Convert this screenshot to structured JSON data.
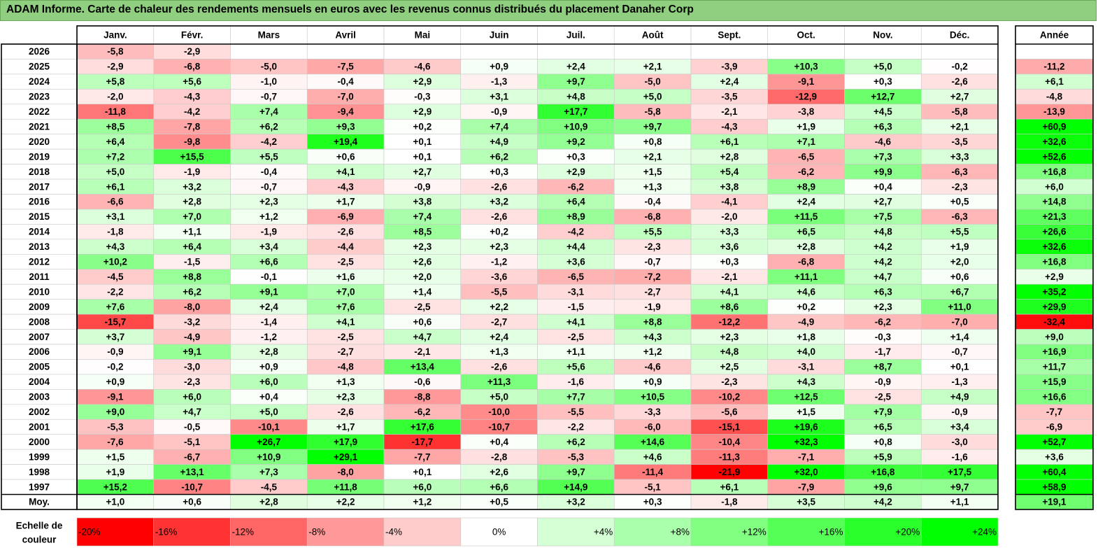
{
  "title": "ADAM Informe. Carte de chaleur des rendements mensuels en euros avec les revenus connus distribués du placement Danaher Corp",
  "chart_data": {
    "type": "heatmap",
    "title": "ADAM Informe. Carte de chaleur des rendements mensuels en euros avec les revenus connus distribués du placement Danaher Corp",
    "columns": [
      "Janv.",
      "Févr.",
      "Mars",
      "Avril",
      "Mai",
      "Juin",
      "Juil.",
      "Août",
      "Sept.",
      "Oct.",
      "Nov.",
      "Déc."
    ],
    "year_column_label": "Année",
    "rows": [
      {
        "year": "2026",
        "values": [
          "-5,8",
          "-2,9",
          "",
          "",
          "",
          "",
          "",
          "",
          "",
          "",
          "",
          ""
        ],
        "annual": ""
      },
      {
        "year": "2025",
        "values": [
          "-2,9",
          "-6,8",
          "-5,0",
          "-7,5",
          "-4,6",
          "+0,9",
          "+2,4",
          "+2,1",
          "-3,9",
          "+10,3",
          "+5,0",
          "-0,2"
        ],
        "annual": "-11,2"
      },
      {
        "year": "2024",
        "values": [
          "+5,8",
          "+5,6",
          "-1,0",
          "-0,4",
          "+2,9",
          "-1,3",
          "+9,7",
          "-5,0",
          "+2,4",
          "-9,1",
          "+0,3",
          "-2,6"
        ],
        "annual": "+6,1"
      },
      {
        "year": "2023",
        "values": [
          "-2,0",
          "-4,3",
          "-0,7",
          "-7,0",
          "-0,3",
          "+3,1",
          "+4,8",
          "+5,0",
          "-3,5",
          "-12,9",
          "+12,7",
          "+2,7"
        ],
        "annual": "-4,8"
      },
      {
        "year": "2022",
        "values": [
          "-11,8",
          "-4,2",
          "+7,4",
          "-9,4",
          "+2,9",
          "-0,9",
          "+17,7",
          "-5,8",
          "-2,1",
          "-3,8",
          "+4,5",
          "-5,8"
        ],
        "annual": "-13,9"
      },
      {
        "year": "2021",
        "values": [
          "+8,5",
          "-7,8",
          "+6,2",
          "+9,3",
          "+0,2",
          "+7,4",
          "+10,9",
          "+9,7",
          "-4,3",
          "+1,9",
          "+6,3",
          "+2,1"
        ],
        "annual": "+60,9"
      },
      {
        "year": "2020",
        "values": [
          "+6,4",
          "-9,8",
          "-4,2",
          "+19,4",
          "+0,1",
          "+4,9",
          "+9,2",
          "+0,8",
          "+6,1",
          "+7,1",
          "-4,6",
          "-3,5"
        ],
        "annual": "+32,6"
      },
      {
        "year": "2019",
        "values": [
          "+7,2",
          "+15,5",
          "+5,5",
          "+0,6",
          "+0,1",
          "+6,2",
          "+0,3",
          "+2,1",
          "+2,8",
          "-6,5",
          "+7,3",
          "+3,3"
        ],
        "annual": "+52,6"
      },
      {
        "year": "2018",
        "values": [
          "+5,0",
          "-1,9",
          "-0,4",
          "+4,1",
          "+2,7",
          "+0,3",
          "+2,9",
          "+1,5",
          "+5,4",
          "-6,2",
          "+9,9",
          "-6,3"
        ],
        "annual": "+16,8"
      },
      {
        "year": "2017",
        "values": [
          "+6,1",
          "+3,2",
          "-0,7",
          "-4,3",
          "-0,9",
          "-2,6",
          "-6,2",
          "+1,3",
          "+3,8",
          "+8,9",
          "+0,4",
          "-2,3"
        ],
        "annual": "+6,0"
      },
      {
        "year": "2016",
        "values": [
          "-6,6",
          "+2,8",
          "+2,3",
          "+1,7",
          "+3,8",
          "+3,2",
          "+6,4",
          "-0,4",
          "-4,1",
          "+2,4",
          "+2,7",
          "+0,5"
        ],
        "annual": "+14,8"
      },
      {
        "year": "2015",
        "values": [
          "+3,1",
          "+7,0",
          "+1,2",
          "-6,9",
          "+7,4",
          "-2,6",
          "+8,9",
          "-6,8",
          "-2,0",
          "+11,5",
          "+7,5",
          "-6,3"
        ],
        "annual": "+21,3"
      },
      {
        "year": "2014",
        "values": [
          "-1,8",
          "+1,1",
          "-1,9",
          "-2,6",
          "+8,5",
          "+0,2",
          "-4,2",
          "+5,5",
          "+3,3",
          "+6,5",
          "+4,8",
          "+5,5"
        ],
        "annual": "+26,6"
      },
      {
        "year": "2013",
        "values": [
          "+4,3",
          "+6,4",
          "+3,4",
          "-4,4",
          "+2,3",
          "+2,3",
          "+4,4",
          "-2,3",
          "+3,6",
          "+2,8",
          "+4,2",
          "+1,9"
        ],
        "annual": "+32,6"
      },
      {
        "year": "2012",
        "values": [
          "+10,2",
          "-1,5",
          "+6,6",
          "-2,5",
          "+2,6",
          "-1,2",
          "+3,6",
          "-0,7",
          "+0,3",
          "-6,8",
          "+4,2",
          "+2,0"
        ],
        "annual": "+16,8"
      },
      {
        "year": "2011",
        "values": [
          "-4,5",
          "+8,8",
          "-0,1",
          "+1,6",
          "+2,0",
          "-3,6",
          "-6,5",
          "-7,2",
          "-2,1",
          "+11,1",
          "+4,7",
          "+0,6"
        ],
        "annual": "+2,9"
      },
      {
        "year": "2010",
        "values": [
          "-2,2",
          "+6,2",
          "+9,1",
          "+7,0",
          "+1,4",
          "-5,5",
          "-3,1",
          "-2,7",
          "+4,1",
          "+4,6",
          "+6,3",
          "+6,7"
        ],
        "annual": "+35,2"
      },
      {
        "year": "2009",
        "values": [
          "+7,6",
          "-8,0",
          "+2,4",
          "+7,6",
          "-2,5",
          "+2,2",
          "-1,5",
          "-1,9",
          "+8,6",
          "+0,2",
          "+2,3",
          "+11,0"
        ],
        "annual": "+29,9"
      },
      {
        "year": "2008",
        "values": [
          "-15,7",
          "-3,2",
          "-1,4",
          "+4,1",
          "+0,6",
          "-2,7",
          "+4,1",
          "+8,8",
          "-12,2",
          "-4,9",
          "-6,2",
          "-7,0"
        ],
        "annual": "-32,4"
      },
      {
        "year": "2007",
        "values": [
          "+3,7",
          "-4,9",
          "-1,2",
          "-2,5",
          "+4,7",
          "+2,4",
          "-2,5",
          "+4,3",
          "+2,3",
          "+1,8",
          "-0,3",
          "+1,4"
        ],
        "annual": "+9,0"
      },
      {
        "year": "2006",
        "values": [
          "-0,9",
          "+9,1",
          "+2,8",
          "-2,7",
          "-2,1",
          "+1,3",
          "+1,1",
          "+1,2",
          "+4,8",
          "+4,0",
          "-1,7",
          "-0,7"
        ],
        "annual": "+16,9"
      },
      {
        "year": "2005",
        "values": [
          "-0,2",
          "-3,0",
          "+0,9",
          "-4,8",
          "+13,4",
          "-2,6",
          "+5,6",
          "-4,6",
          "+2,5",
          "-3,1",
          "+8,7",
          "+0,1"
        ],
        "annual": "+11,7"
      },
      {
        "year": "2004",
        "values": [
          "+0,9",
          "-2,3",
          "+6,0",
          "+1,3",
          "-0,6",
          "+11,3",
          "-1,6",
          "+0,9",
          "-2,3",
          "+4,3",
          "-0,9",
          "-1,3"
        ],
        "annual": "+15,9"
      },
      {
        "year": "2003",
        "values": [
          "-9,1",
          "+6,0",
          "+0,4",
          "+2,3",
          "-8,8",
          "+5,0",
          "+7,7",
          "+10,5",
          "-10,2",
          "+12,5",
          "-2,5",
          "+4,9"
        ],
        "annual": "+16,6"
      },
      {
        "year": "2002",
        "values": [
          "+9,0",
          "+4,7",
          "+5,0",
          "-2,6",
          "-6,2",
          "-10,0",
          "-5,5",
          "-3,3",
          "-5,6",
          "+1,5",
          "+7,9",
          "-0,9"
        ],
        "annual": "-7,7"
      },
      {
        "year": "2001",
        "values": [
          "-5,3",
          "-0,5",
          "-10,1",
          "+1,7",
          "+17,6",
          "-10,7",
          "-2,2",
          "-6,0",
          "-15,1",
          "+19,6",
          "+6,5",
          "+3,4"
        ],
        "annual": "-6,9"
      },
      {
        "year": "2000",
        "values": [
          "-7,6",
          "-5,1",
          "+26,7",
          "+17,9",
          "-17,7",
          "+0,4",
          "+6,2",
          "+14,6",
          "-10,4",
          "+32,3",
          "+0,8",
          "-3,0"
        ],
        "annual": "+52,7"
      },
      {
        "year": "1999",
        "values": [
          "+1,5",
          "-6,7",
          "+10,9",
          "+29,1",
          "-7,7",
          "-2,8",
          "-5,3",
          "+4,6",
          "-11,3",
          "-7,1",
          "+5,9",
          "-1,6"
        ],
        "annual": "+3,6"
      },
      {
        "year": "1998",
        "values": [
          "+1,9",
          "+13,1",
          "+7,3",
          "-8,0",
          "+0,1",
          "+2,6",
          "+9,7",
          "-11,4",
          "-21,9",
          "+32,0",
          "+16,8",
          "+17,5"
        ],
        "annual": "+60,4"
      },
      {
        "year": "1997",
        "values": [
          "+15,2",
          "-10,7",
          "-4,5",
          "+11,8",
          "+6,0",
          "+6,6",
          "+14,9",
          "-5,1",
          "+6,1",
          "-7,9",
          "+9,6",
          "+9,7"
        ],
        "annual": "+58,9"
      }
    ],
    "average": {
      "label": "Moy.",
      "values": [
        "+1,0",
        "+0,6",
        "+2,8",
        "+2,2",
        "+1,2",
        "+0,5",
        "+3,2",
        "+0,3",
        "-1,8",
        "+3,5",
        "+4,2",
        "+1,1"
      ],
      "annual": "+19,1"
    },
    "color_scale": {
      "label_lines": [
        "Echelle de",
        "couleur"
      ],
      "stops": [
        {
          "label": "-20%",
          "value": -20
        },
        {
          "label": "-16%",
          "value": -16
        },
        {
          "label": "-12%",
          "value": -12
        },
        {
          "label": "-8%",
          "value": -8
        },
        {
          "label": "-4%",
          "value": -4
        },
        {
          "label": "0%",
          "value": 0
        },
        {
          "label": "+4%",
          "value": 4
        },
        {
          "label": "+8%",
          "value": 8
        },
        {
          "label": "+12%",
          "value": 12
        },
        {
          "label": "+16%",
          "value": 16
        },
        {
          "label": "+20%",
          "value": 20
        },
        {
          "label": "+24%",
          "value": 24
        }
      ],
      "negative_color": "#ff0000",
      "neutral_color": "#ffffff",
      "positive_color": "#00ff00"
    }
  }
}
